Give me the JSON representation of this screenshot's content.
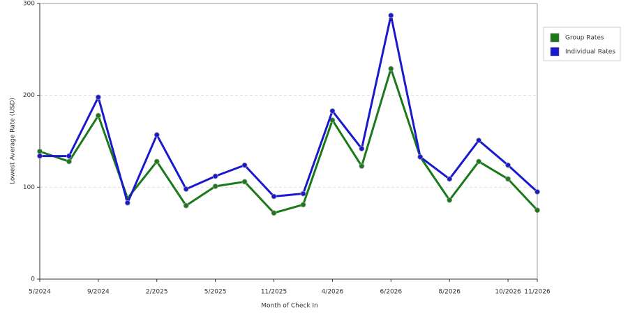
{
  "chart_data": {
    "type": "line",
    "x_label": "Month of Check In",
    "y_label": "Lowest Average Rate (USD)",
    "categories": [
      "5/2024",
      null,
      "9/2024",
      null,
      "2/2025",
      null,
      "5/2025",
      null,
      "11/2025",
      null,
      "4/2026",
      null,
      "6/2026",
      null,
      "8/2026",
      null,
      "10/2026",
      "11/2026"
    ],
    "series": [
      {
        "name": "Group Rates",
        "color": "#1a7a1a",
        "values": [
          139,
          128,
          178,
          88,
          128,
          80,
          101,
          106,
          72,
          81,
          173,
          123,
          229,
          133,
          86,
          128,
          109,
          75
        ]
      },
      {
        "name": "Individual Rates",
        "color": "#1a1acc",
        "values": [
          134,
          134,
          198,
          83,
          157,
          98,
          112,
          124,
          90,
          93,
          183,
          142,
          287,
          133,
          109,
          151,
          124,
          95
        ]
      }
    ],
    "ylim": [
      0,
      300
    ],
    "yticks": [
      0,
      100,
      200,
      300
    ],
    "grid": true,
    "legend": "right"
  }
}
